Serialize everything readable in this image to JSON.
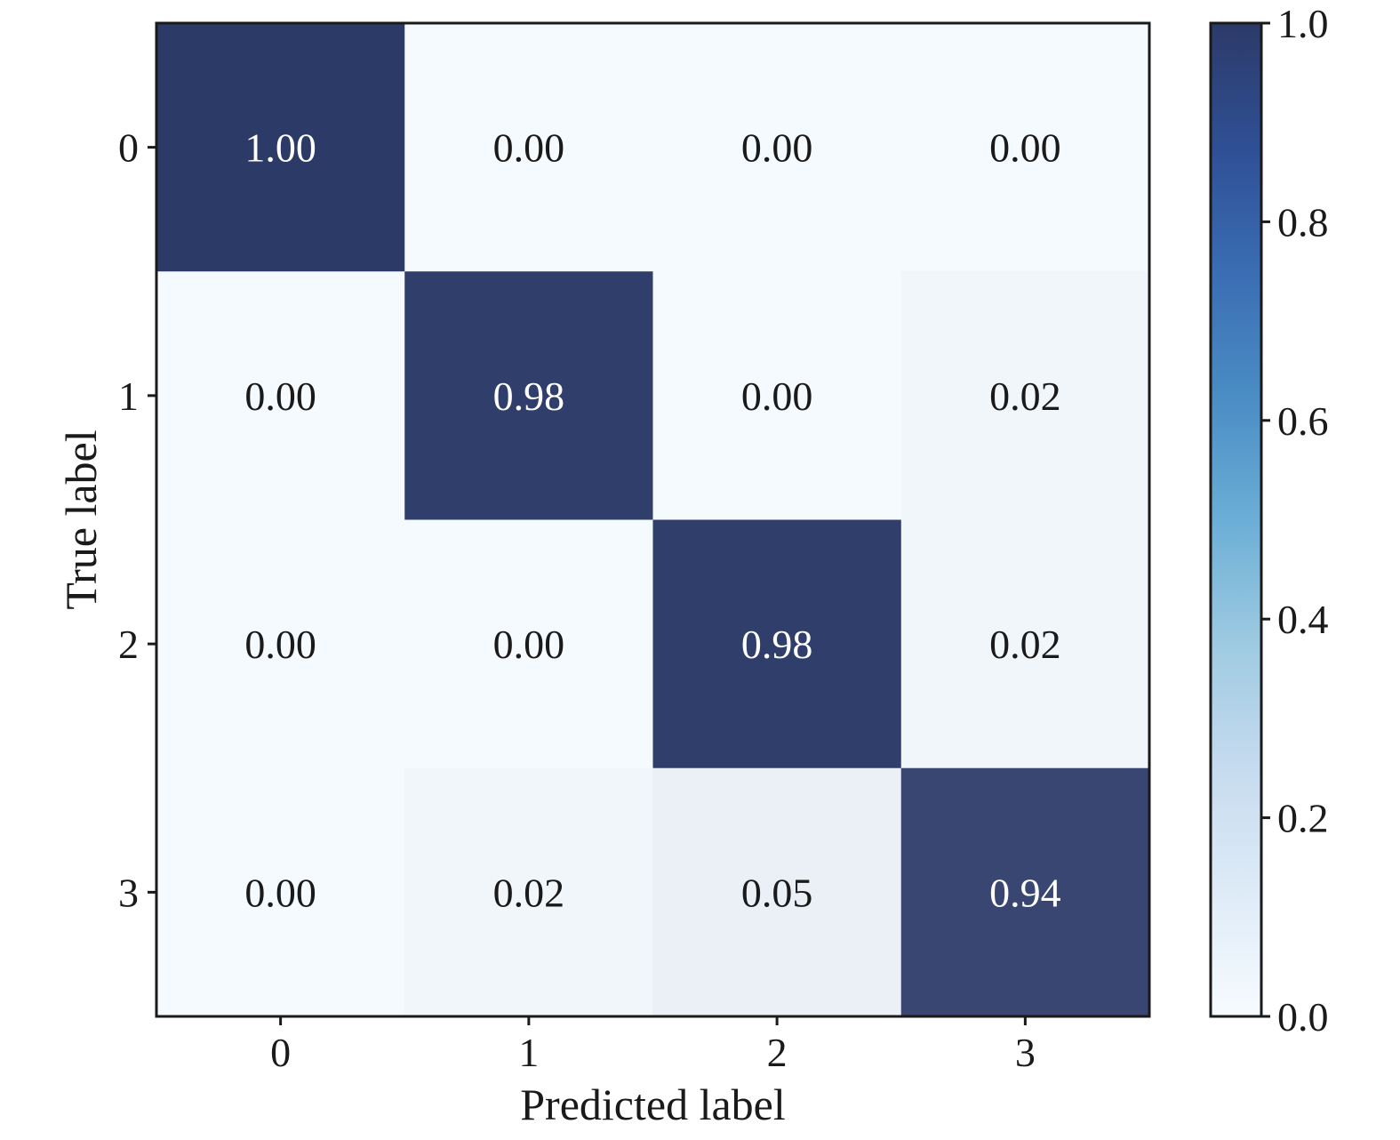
{
  "chart_data": {
    "type": "heatmap",
    "title": "",
    "xlabel": "Predicted label",
    "ylabel": "True label",
    "x_categories": [
      "0",
      "1",
      "2",
      "3"
    ],
    "y_categories": [
      "0",
      "1",
      "2",
      "3"
    ],
    "values": [
      [
        1.0,
        0.0,
        0.0,
        0.0
      ],
      [
        0.0,
        0.98,
        0.0,
        0.02
      ],
      [
        0.0,
        0.0,
        0.98,
        0.02
      ],
      [
        0.0,
        0.02,
        0.05,
        0.94
      ]
    ],
    "value_labels": [
      [
        "1.00",
        "0.00",
        "0.00",
        "0.00"
      ],
      [
        "0.00",
        "0.98",
        "0.00",
        "0.02"
      ],
      [
        "0.00",
        "0.00",
        "0.98",
        "0.02"
      ],
      [
        "0.00",
        "0.02",
        "0.05",
        "0.94"
      ]
    ],
    "colormap": "Blues",
    "colorbar": {
      "range": [
        0.0,
        1.0
      ],
      "ticks": [
        "0.0",
        "0.2",
        "0.4",
        "0.6",
        "0.8",
        "1.0"
      ]
    },
    "colors": {
      "low": "#f5fafe",
      "high": "#2c3a68",
      "text_dark": "#1a1a1a",
      "text_light": "#ffffff"
    }
  }
}
